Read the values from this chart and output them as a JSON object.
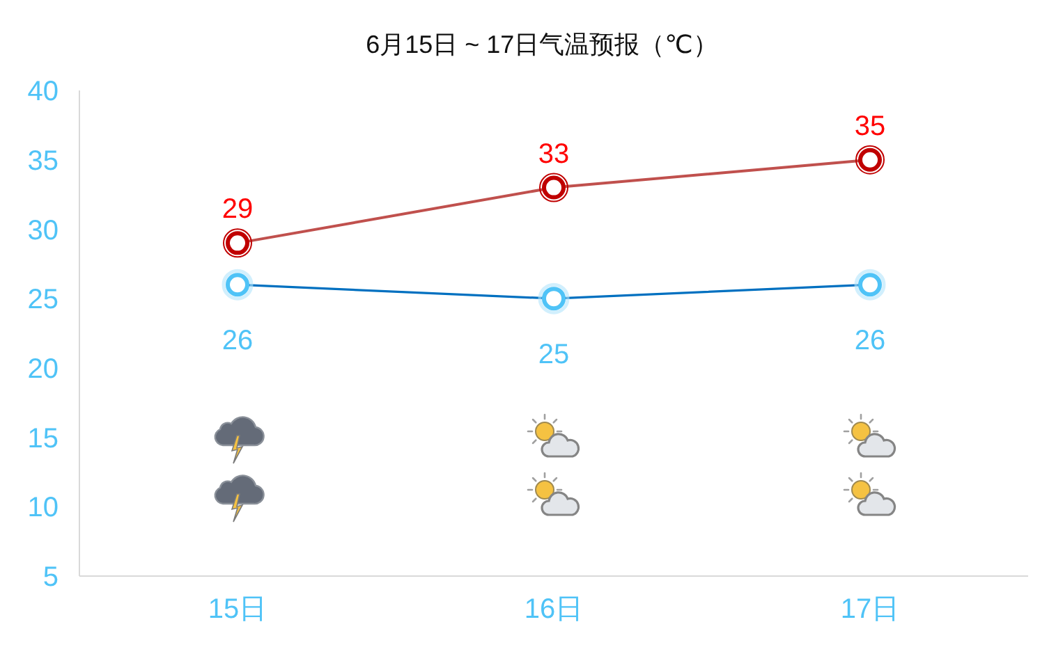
{
  "chart_data": {
    "type": "line",
    "title": "6月15日 ~ 17日气温预报（℃）",
    "categories": [
      "15日",
      "16日",
      "17日"
    ],
    "series": [
      {
        "color": "#c0504d",
        "values": [
          29,
          33,
          35
        ]
      },
      {
        "color": "#0070c0",
        "values": [
          26,
          25,
          26
        ]
      }
    ],
    "ylim": [
      5,
      40
    ],
    "yticks": [
      5,
      10,
      15,
      20,
      25,
      30,
      35,
      40
    ],
    "marker": "circle",
    "data_labels": true
  }
}
